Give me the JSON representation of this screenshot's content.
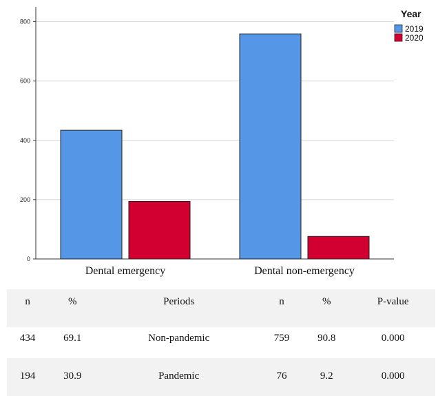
{
  "chart_data": {
    "type": "bar",
    "categories": [
      "Dental emergency",
      "Dental non-emergency"
    ],
    "series": [
      {
        "name": "2019",
        "values": [
          434,
          759
        ],
        "color": "#5596e6"
      },
      {
        "name": "2020",
        "values": [
          194,
          76
        ],
        "color": "#d20031"
      }
    ],
    "ylim": [
      0,
      850
    ],
    "yticks": [
      "0",
      "200",
      "400",
      "600",
      "800"
    ],
    "legend_title": "Year",
    "legend_position": "top-right",
    "grid": true
  },
  "table": {
    "headers": [
      "n",
      "%",
      "Periods",
      "n",
      "%",
      "P-value"
    ],
    "rows": [
      [
        "434",
        "69.1",
        "Non-pandemic",
        "759",
        "90.8",
        "0.000"
      ],
      [
        "194",
        "30.9",
        "Pandemic",
        "76",
        "9.2",
        "0.000"
      ]
    ]
  }
}
